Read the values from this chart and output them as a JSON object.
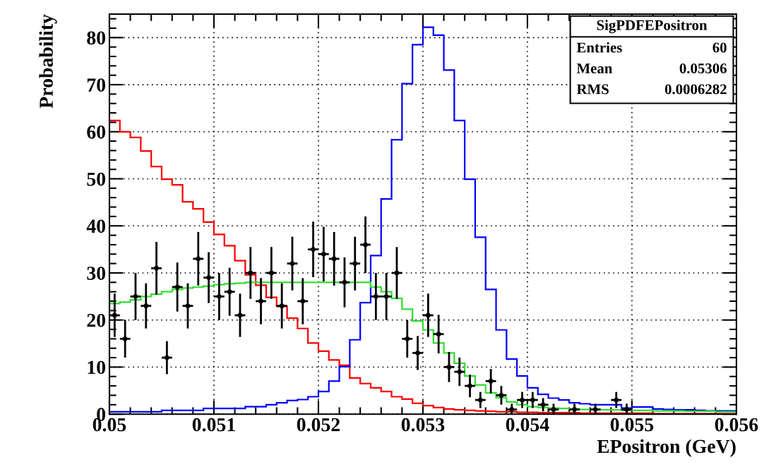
{
  "chart_data": {
    "type": "histogram",
    "xlabel": "EPositron (GeV)",
    "ylabel": "Probability",
    "bins": [
      0.05,
      0.0501,
      0.0502,
      0.0503,
      0.0504,
      0.0505,
      0.0506,
      0.0507,
      0.0508,
      0.0509,
      0.051,
      0.0511,
      0.0512,
      0.0513,
      0.0514,
      0.0515,
      0.0516,
      0.0517,
      0.0518,
      0.0519,
      0.052,
      0.0521,
      0.0522,
      0.0523,
      0.0524,
      0.0525,
      0.0526,
      0.0527,
      0.0528,
      0.0529,
      0.053,
      0.0531,
      0.0532,
      0.0533,
      0.0534,
      0.0535,
      0.0536,
      0.0537,
      0.0538,
      0.0539,
      0.054,
      0.0541,
      0.0542,
      0.0543,
      0.0544,
      0.0545,
      0.0546,
      0.0547,
      0.0548,
      0.0549,
      0.055,
      0.0551,
      0.0552,
      0.0553,
      0.0554,
      0.0555,
      0.0556,
      0.0557,
      0.0558,
      0.0559,
      0.056
    ],
    "series": [
      {
        "color": "#ff0000",
        "values": [
          62.4,
          60,
          58.8,
          55.9,
          52.6,
          49.9,
          48.7,
          45.1,
          43.6,
          40.8,
          38.2,
          35.8,
          32.6,
          29.6,
          27.4,
          24.8,
          22.9,
          20.4,
          18.2,
          15.1,
          13.4,
          11.5,
          10.4,
          7.7,
          6.5,
          5.6,
          4.8,
          3.7,
          3.2,
          2.3,
          1.8,
          1.4,
          1.1,
          0.9,
          0.8,
          0.7,
          0.6,
          0.5,
          0.5,
          0.4,
          0.4,
          0.3,
          0.3,
          0.3,
          0.3,
          0.2,
          0.2,
          0.2,
          0.2,
          0.2,
          0.2,
          0.2,
          0.1,
          0.1,
          0.1,
          0.1,
          0.1,
          0.1,
          0.1,
          0.1
        ]
      },
      {
        "color": "#0000ff",
        "values": [
          0.5,
          0.5,
          0.5,
          0.5,
          0.5,
          0.8,
          0.8,
          0.8,
          0.8,
          1.2,
          1.2,
          1.2,
          1.2,
          1.6,
          1.6,
          2.0,
          2.4,
          2.9,
          3.1,
          3.7,
          4.8,
          7.0,
          10.1,
          15.8,
          23.7,
          33.7,
          45.7,
          58.3,
          70.2,
          78.5,
          82.2,
          80.5,
          73.1,
          62.4,
          49.9,
          37.6,
          26.5,
          17.9,
          11.7,
          8.1,
          5.6,
          4.2,
          3.4,
          3.0,
          2.4,
          2.2,
          2.0,
          2.0,
          2.0,
          1.3,
          1.5,
          1.5,
          1.1,
          1.0,
          0.9,
          0.9,
          0.8,
          0.7,
          0.7,
          0.7
        ]
      },
      {
        "color": "#33dd33",
        "values": [
          23.5,
          23.8,
          24.3,
          25,
          25.5,
          26,
          26.5,
          26.8,
          27,
          27.2,
          27.5,
          27.7,
          27.8,
          28,
          28,
          28,
          28,
          28,
          28,
          28,
          28,
          28,
          28,
          28,
          28,
          27,
          26,
          24.6,
          22.3,
          19.8,
          17.9,
          15.1,
          13.0,
          10.8,
          8.1,
          6.2,
          4.5,
          3.5,
          2.6,
          2.0,
          1.6,
          1.4,
          1.3,
          1.2,
          1.1,
          1.0,
          1.0,
          0.9,
          0.9,
          0.8,
          0.8,
          0.8,
          0.7,
          0.7,
          0.7,
          0.6,
          0.6,
          0.6,
          0.5,
          0.5
        ]
      },
      {
        "type": "scatter",
        "color": "#000000",
        "marker": "circle",
        "x": [
          0.05005,
          0.05015,
          0.05025,
          0.05035,
          0.05045,
          0.05055,
          0.05065,
          0.05075,
          0.05085,
          0.05095,
          0.05105,
          0.05115,
          0.05125,
          0.05135,
          0.05145,
          0.05155,
          0.05165,
          0.05175,
          0.05185,
          0.05195,
          0.05205,
          0.05215,
          0.05225,
          0.05235,
          0.05245,
          0.05255,
          0.05265,
          0.05275,
          0.05285,
          0.05295,
          0.05305,
          0.05315,
          0.05325,
          0.05335,
          0.05345,
          0.05355,
          0.05365,
          0.05375,
          0.05385,
          0.05395,
          0.05405,
          0.05415,
          0.05425,
          0.05445,
          0.05465,
          0.05485,
          0.05495
        ],
        "values": [
          21,
          16,
          25,
          23,
          31,
          12,
          27,
          23,
          33,
          29,
          25,
          26,
          21,
          30,
          24,
          30,
          23,
          32,
          24,
          35,
          34,
          33,
          28,
          32,
          36,
          25,
          25,
          30,
          16,
          13,
          21,
          17,
          10,
          9,
          6,
          3,
          7,
          4,
          1,
          3,
          3,
          2,
          1,
          1,
          1,
          3,
          1
        ],
        "errors": [
          4.6,
          4,
          5,
          4.8,
          5.6,
          3.5,
          5.2,
          4.8,
          5.7,
          5.4,
          5,
          5.1,
          4.6,
          5.5,
          4.9,
          5.5,
          4.8,
          5.7,
          4.9,
          5.9,
          5.8,
          5.7,
          5.3,
          5.7,
          6,
          5,
          5,
          5.5,
          4,
          3.6,
          4.6,
          4.1,
          3.2,
          3,
          2.4,
          1.7,
          2.6,
          2,
          1.2,
          1.7,
          1.7,
          1.4,
          1.2,
          1.2,
          1.2,
          1.7,
          1.2
        ],
        "xerrors": [
          5e-05,
          5e-05,
          5e-05,
          5e-05,
          5e-05,
          5e-05,
          5e-05,
          5e-05,
          5e-05,
          5e-05,
          5e-05,
          5e-05,
          5e-05,
          5e-05,
          5e-05,
          5e-05,
          5e-05,
          5e-05,
          5e-05,
          5e-05,
          5e-05,
          5e-05,
          5e-05,
          5e-05,
          5e-05,
          5e-05,
          5e-05,
          5e-05,
          5e-05,
          5e-05,
          5e-05,
          5e-05,
          5e-05,
          5e-05,
          5e-05,
          5e-05,
          5e-05,
          5e-05,
          5e-05,
          5e-05,
          5e-05,
          5e-05,
          5e-05,
          5e-05,
          5e-05,
          5e-05,
          5e-05
        ]
      }
    ],
    "xlim": [
      0.05,
      0.056
    ],
    "xticks": [
      0.05,
      0.051,
      0.052,
      0.053,
      0.054,
      0.055,
      0.056
    ],
    "ylim": [
      0,
      85
    ],
    "yticks": [
      0,
      10,
      20,
      30,
      40,
      50,
      60,
      70,
      80
    ],
    "grid": true,
    "annotations": [
      "SigPDFEPositron",
      "Entries",
      "60",
      "Mean",
      "0.05306",
      "RMS",
      "0.0006282"
    ]
  }
}
